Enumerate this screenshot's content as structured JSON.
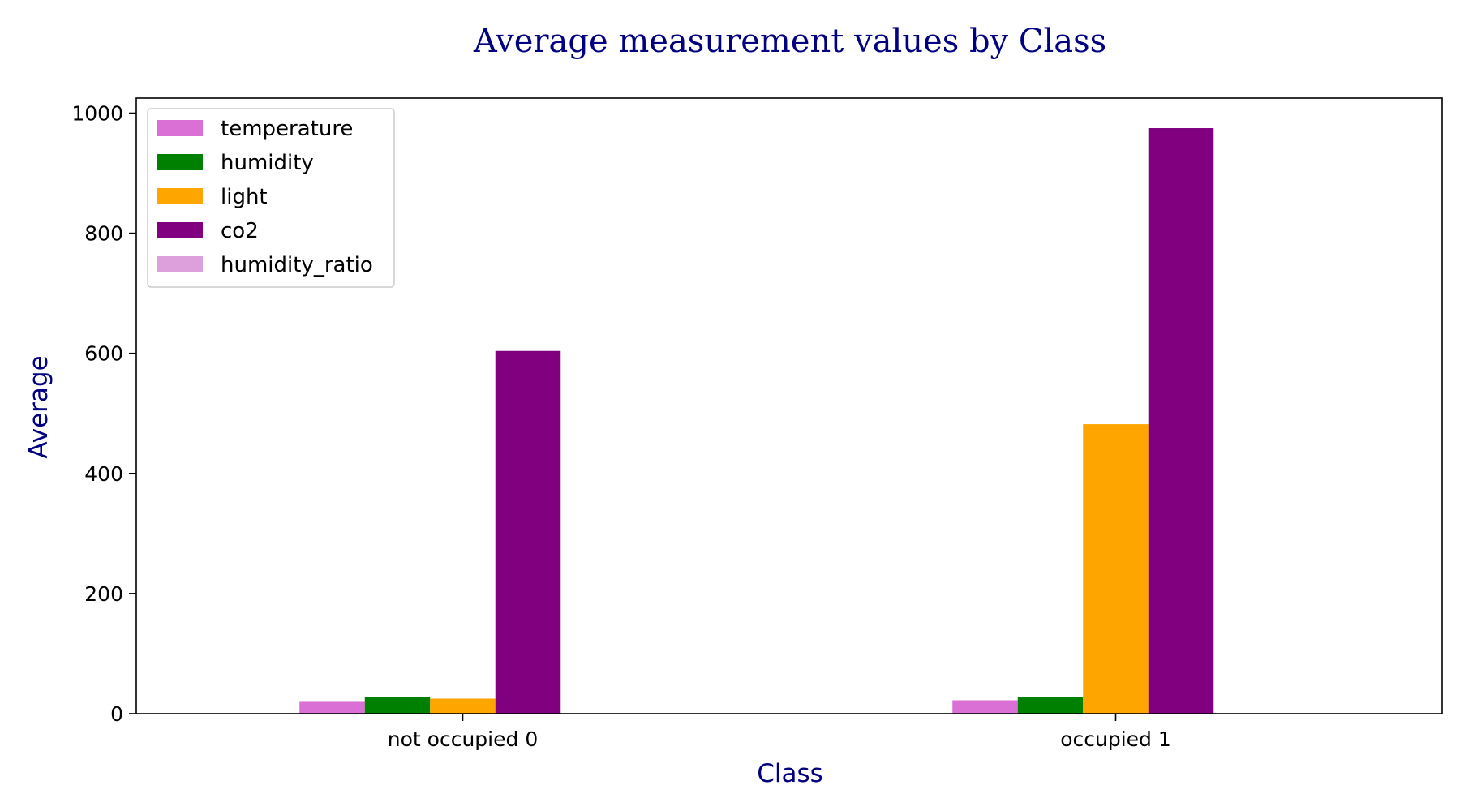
{
  "chart_data": {
    "type": "bar",
    "title": "Average measurement values by Class",
    "xlabel": "Class",
    "ylabel": "Average",
    "categories": [
      "not occupied 0",
      "occupied 1"
    ],
    "series": [
      {
        "name": "temperature",
        "color": "#da70d6",
        "values": [
          21.0,
          22.3
        ]
      },
      {
        "name": "humidity",
        "color": "#008000",
        "values": [
          27.4,
          27.7
        ]
      },
      {
        "name": "light",
        "color": "#ffa500",
        "values": [
          25.0,
          482.0
        ]
      },
      {
        "name": "co2",
        "color": "#800080",
        "values": [
          604.0,
          975.0
        ]
      },
      {
        "name": "humidity_ratio",
        "color": "#dda0dd",
        "values": [
          0.0041,
          0.0044
        ]
      }
    ],
    "ylim": [
      0,
      1025
    ],
    "yticks": [
      0,
      200,
      400,
      600,
      800,
      1000
    ],
    "grid": false,
    "legend_position": "top-left",
    "title_color": "#000080",
    "axis_label_color": "#000080"
  }
}
